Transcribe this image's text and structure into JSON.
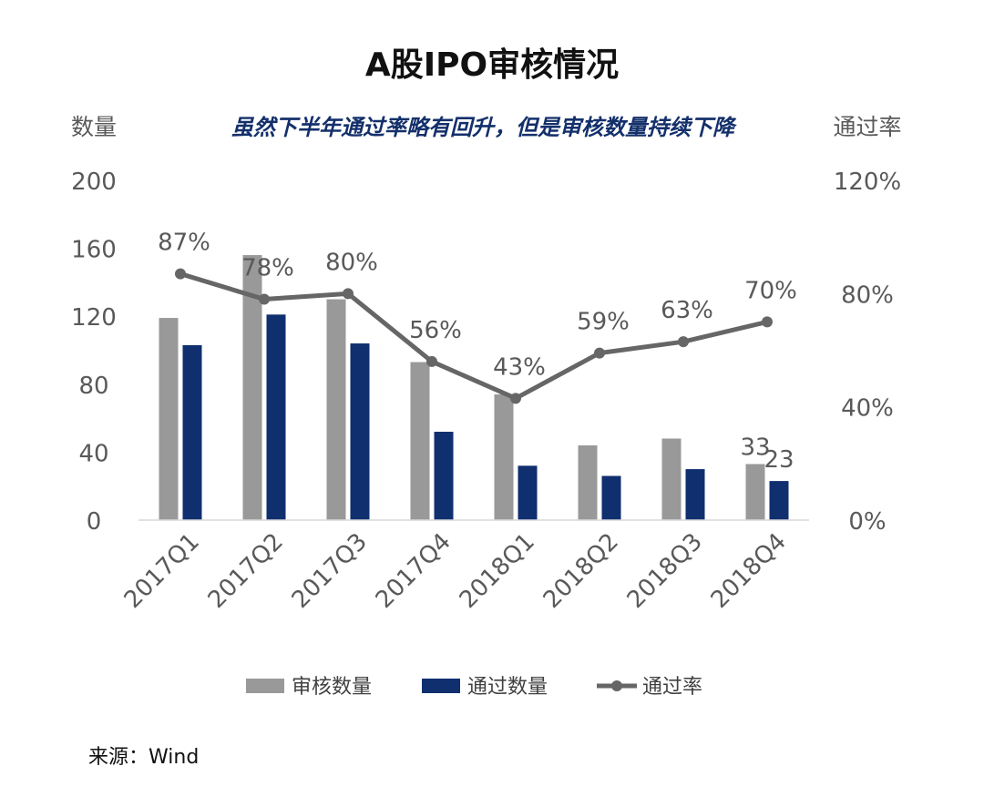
{
  "chart_data": {
    "type": "bar",
    "title": "A股IPO审核情况",
    "subtitle": "虽然下半年通过率略有回升，但是审核数量持续下降",
    "ylabel_left": "数量",
    "ylabel_right": "通过率",
    "categories": [
      "2017Q1",
      "2017Q2",
      "2017Q3",
      "2017Q4",
      "2018Q1",
      "2018Q2",
      "2018Q3",
      "2018Q4"
    ],
    "ylim_left": [
      0,
      200
    ],
    "ylim_right": [
      0,
      120
    ],
    "left_ticks": [
      "0",
      "40",
      "80",
      "120",
      "160",
      "200"
    ],
    "right_ticks": [
      "0%",
      "40%",
      "80%",
      "120%"
    ],
    "series": [
      {
        "name": "审核数量",
        "kind": "bar",
        "axis": "left",
        "color": "#999999",
        "values": [
          119,
          156,
          130,
          93,
          74,
          44,
          48,
          33
        ]
      },
      {
        "name": "通过数量",
        "kind": "bar",
        "axis": "left",
        "color": "#0f2f6f",
        "values": [
          103,
          121,
          104,
          52,
          32,
          26,
          30,
          23
        ]
      },
      {
        "name": "通过率",
        "kind": "line",
        "axis": "right",
        "color": "#666666",
        "values": [
          87,
          78,
          80,
          56,
          43,
          59,
          63,
          70
        ]
      }
    ],
    "bar_data_labels": [
      {
        "category": "2018Q4",
        "series": "审核数量",
        "text": "33"
      },
      {
        "category": "2018Q4",
        "series": "通过数量",
        "text": "23"
      }
    ],
    "line_data_labels": [
      "87%",
      "78%",
      "80%",
      "56%",
      "43%",
      "59%",
      "63%",
      "70%"
    ],
    "legend_position": "bottom",
    "grid": false
  },
  "source": "来源：Wind"
}
